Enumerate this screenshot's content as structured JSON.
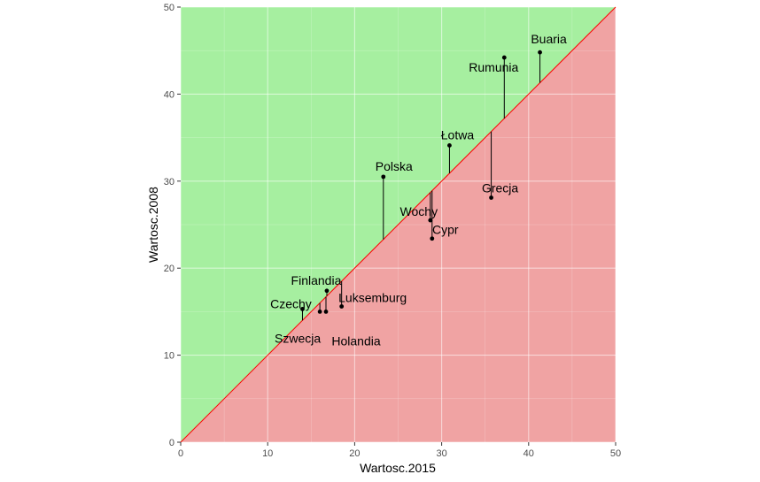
{
  "chart_data": {
    "type": "scatter",
    "title": "",
    "xlabel": "Wartosc.2015",
    "ylabel": "Wartosc.2008",
    "xlim": [
      0,
      50
    ],
    "ylim": [
      0,
      50
    ],
    "x_ticks": [
      "0",
      "10",
      "20",
      "30",
      "40",
      "50"
    ],
    "y_ticks": [
      "0",
      "10",
      "20",
      "30",
      "40",
      "50"
    ],
    "grid": true,
    "reference_line": "y = x",
    "colors": {
      "above_region": "#A6EFA0",
      "below_region": "#F0A3A3",
      "diagonal": "#ff0000",
      "points": "#000000",
      "gridlines": "#ffffff"
    },
    "points": [
      {
        "label": "Buaria",
        "x": 41.3,
        "y": 44.8
      },
      {
        "label": "Rumunia",
        "x": 37.2,
        "y": 44.2
      },
      {
        "label": "Łotwa",
        "x": 30.9,
        "y": 34.1
      },
      {
        "label": "Polska",
        "x": 23.3,
        "y": 30.5
      },
      {
        "label": "Grecja",
        "x": 35.7,
        "y": 28.1
      },
      {
        "label": "Wochy",
        "x": 28.7,
        "y": 25.5
      },
      {
        "label": "Cypr",
        "x": 28.9,
        "y": 23.4
      },
      {
        "label": "Finlandia",
        "x": 16.8,
        "y": 17.4
      },
      {
        "label": "Luksemburg",
        "x": 18.5,
        "y": 15.6
      },
      {
        "label": "Czechy",
        "x": 14.0,
        "y": 15.3
      },
      {
        "label": "Szwecja",
        "x": 16.0,
        "y": 15.0
      },
      {
        "label": "Holandia",
        "x": 16.7,
        "y": 15.0
      }
    ]
  }
}
